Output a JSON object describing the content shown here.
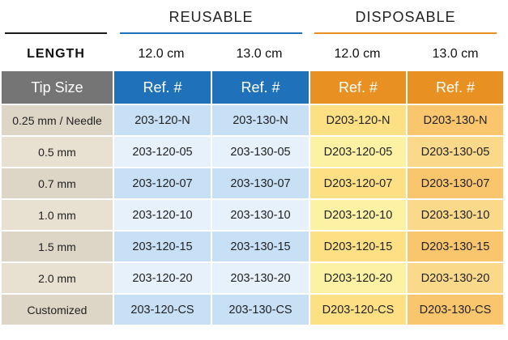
{
  "groups": {
    "reusable": "REUSABLE",
    "disposable": "DISPOSABLE"
  },
  "colors": {
    "reusable_accent": "#1f72ba",
    "disposable_accent": "#e89022",
    "tip_header": "#757575"
  },
  "length_row": {
    "label": "LENGTH",
    "values": [
      "12.0 cm",
      "13.0 cm",
      "12.0 cm",
      "13.0 cm"
    ]
  },
  "table": {
    "headers": [
      "Tip Size",
      "Ref. #",
      "Ref. #",
      "Ref. #",
      "Ref. #"
    ],
    "rows": [
      [
        "0.25 mm / Needle",
        "203-120-N",
        "203-130-N",
        "D203-120-N",
        "D203-130-N"
      ],
      [
        "0.5 mm",
        "203-120-05",
        "203-130-05",
        "D203-120-05",
        "D203-130-05"
      ],
      [
        "0.7 mm",
        "203-120-07",
        "203-130-07",
        "D203-120-07",
        "D203-130-07"
      ],
      [
        "1.0 mm",
        "203-120-10",
        "203-130-10",
        "D203-120-10",
        "D203-130-10"
      ],
      [
        "1.5 mm",
        "203-120-15",
        "203-130-15",
        "D203-120-15",
        "D203-130-15"
      ],
      [
        "2.0 mm",
        "203-120-20",
        "203-130-20",
        "D203-120-20",
        "D203-130-20"
      ],
      [
        "Customized",
        "203-120-CS",
        "203-130-CS",
        "D203-120-CS",
        "D203-130-CS"
      ]
    ]
  }
}
